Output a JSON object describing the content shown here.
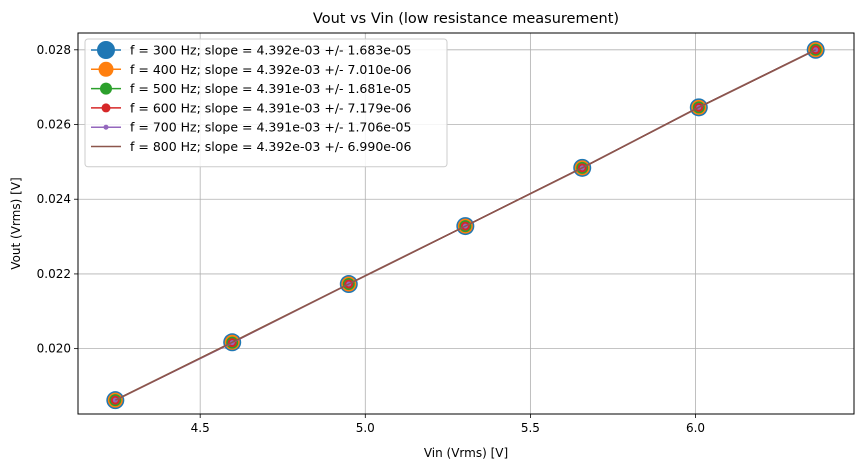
{
  "chart_data": {
    "type": "line",
    "title": "Vout vs Vin (low resistance measurement)",
    "xlabel": "Vin (Vrms) [V]",
    "ylabel": "Vout (Vrms) [V]",
    "xlim": [
      4.13,
      6.48
    ],
    "ylim": [
      0.01825,
      0.02845
    ],
    "xticks": [
      "4.5",
      "5.0",
      "5.5",
      "6.0"
    ],
    "yticks": [
      "0.020",
      "0.022",
      "0.024",
      "0.026",
      "0.028"
    ],
    "grid": true,
    "legend_position": "upper left",
    "x": [
      4.243,
      4.597,
      4.95,
      5.303,
      5.657,
      6.01,
      6.364
    ],
    "series": [
      {
        "name": "f = 300 Hz; slope = 4.392e-03 +/- 1.683e-05",
        "color": "#1f77b4",
        "marker_size": 18,
        "values": [
          0.01862,
          0.02017,
          0.02173,
          0.02328,
          0.02484,
          0.02646,
          0.028
        ]
      },
      {
        "name": "f = 400 Hz; slope = 4.392e-03 +/- 7.010e-06",
        "color": "#ff7f0e",
        "marker_size": 15,
        "values": [
          0.01862,
          0.02017,
          0.02173,
          0.02328,
          0.02484,
          0.02646,
          0.028
        ]
      },
      {
        "name": "f = 500 Hz; slope = 4.391e-03 +/- 1.681e-05",
        "color": "#2ca02c",
        "marker_size": 12,
        "values": [
          0.01862,
          0.02016,
          0.02173,
          0.02328,
          0.02484,
          0.02646,
          0.028
        ]
      },
      {
        "name": "f = 600 Hz; slope = 4.391e-03 +/- 7.179e-06",
        "color": "#d62728",
        "marker_size": 9,
        "values": [
          0.01862,
          0.02016,
          0.02173,
          0.02328,
          0.02484,
          0.02646,
          0.028
        ]
      },
      {
        "name": "f = 700 Hz; slope = 4.391e-03 +/- 1.706e-05",
        "color": "#9467bd",
        "marker_size": 5,
        "values": [
          0.01862,
          0.02016,
          0.02173,
          0.02328,
          0.02484,
          0.02646,
          0.028
        ]
      },
      {
        "name": "f = 800 Hz; slope = 4.392e-03 +/- 6.990e-06",
        "color": "#8c564b",
        "marker_size": 0,
        "values": [
          0.01862,
          0.02017,
          0.02173,
          0.02328,
          0.02484,
          0.02646,
          0.028
        ]
      }
    ]
  }
}
